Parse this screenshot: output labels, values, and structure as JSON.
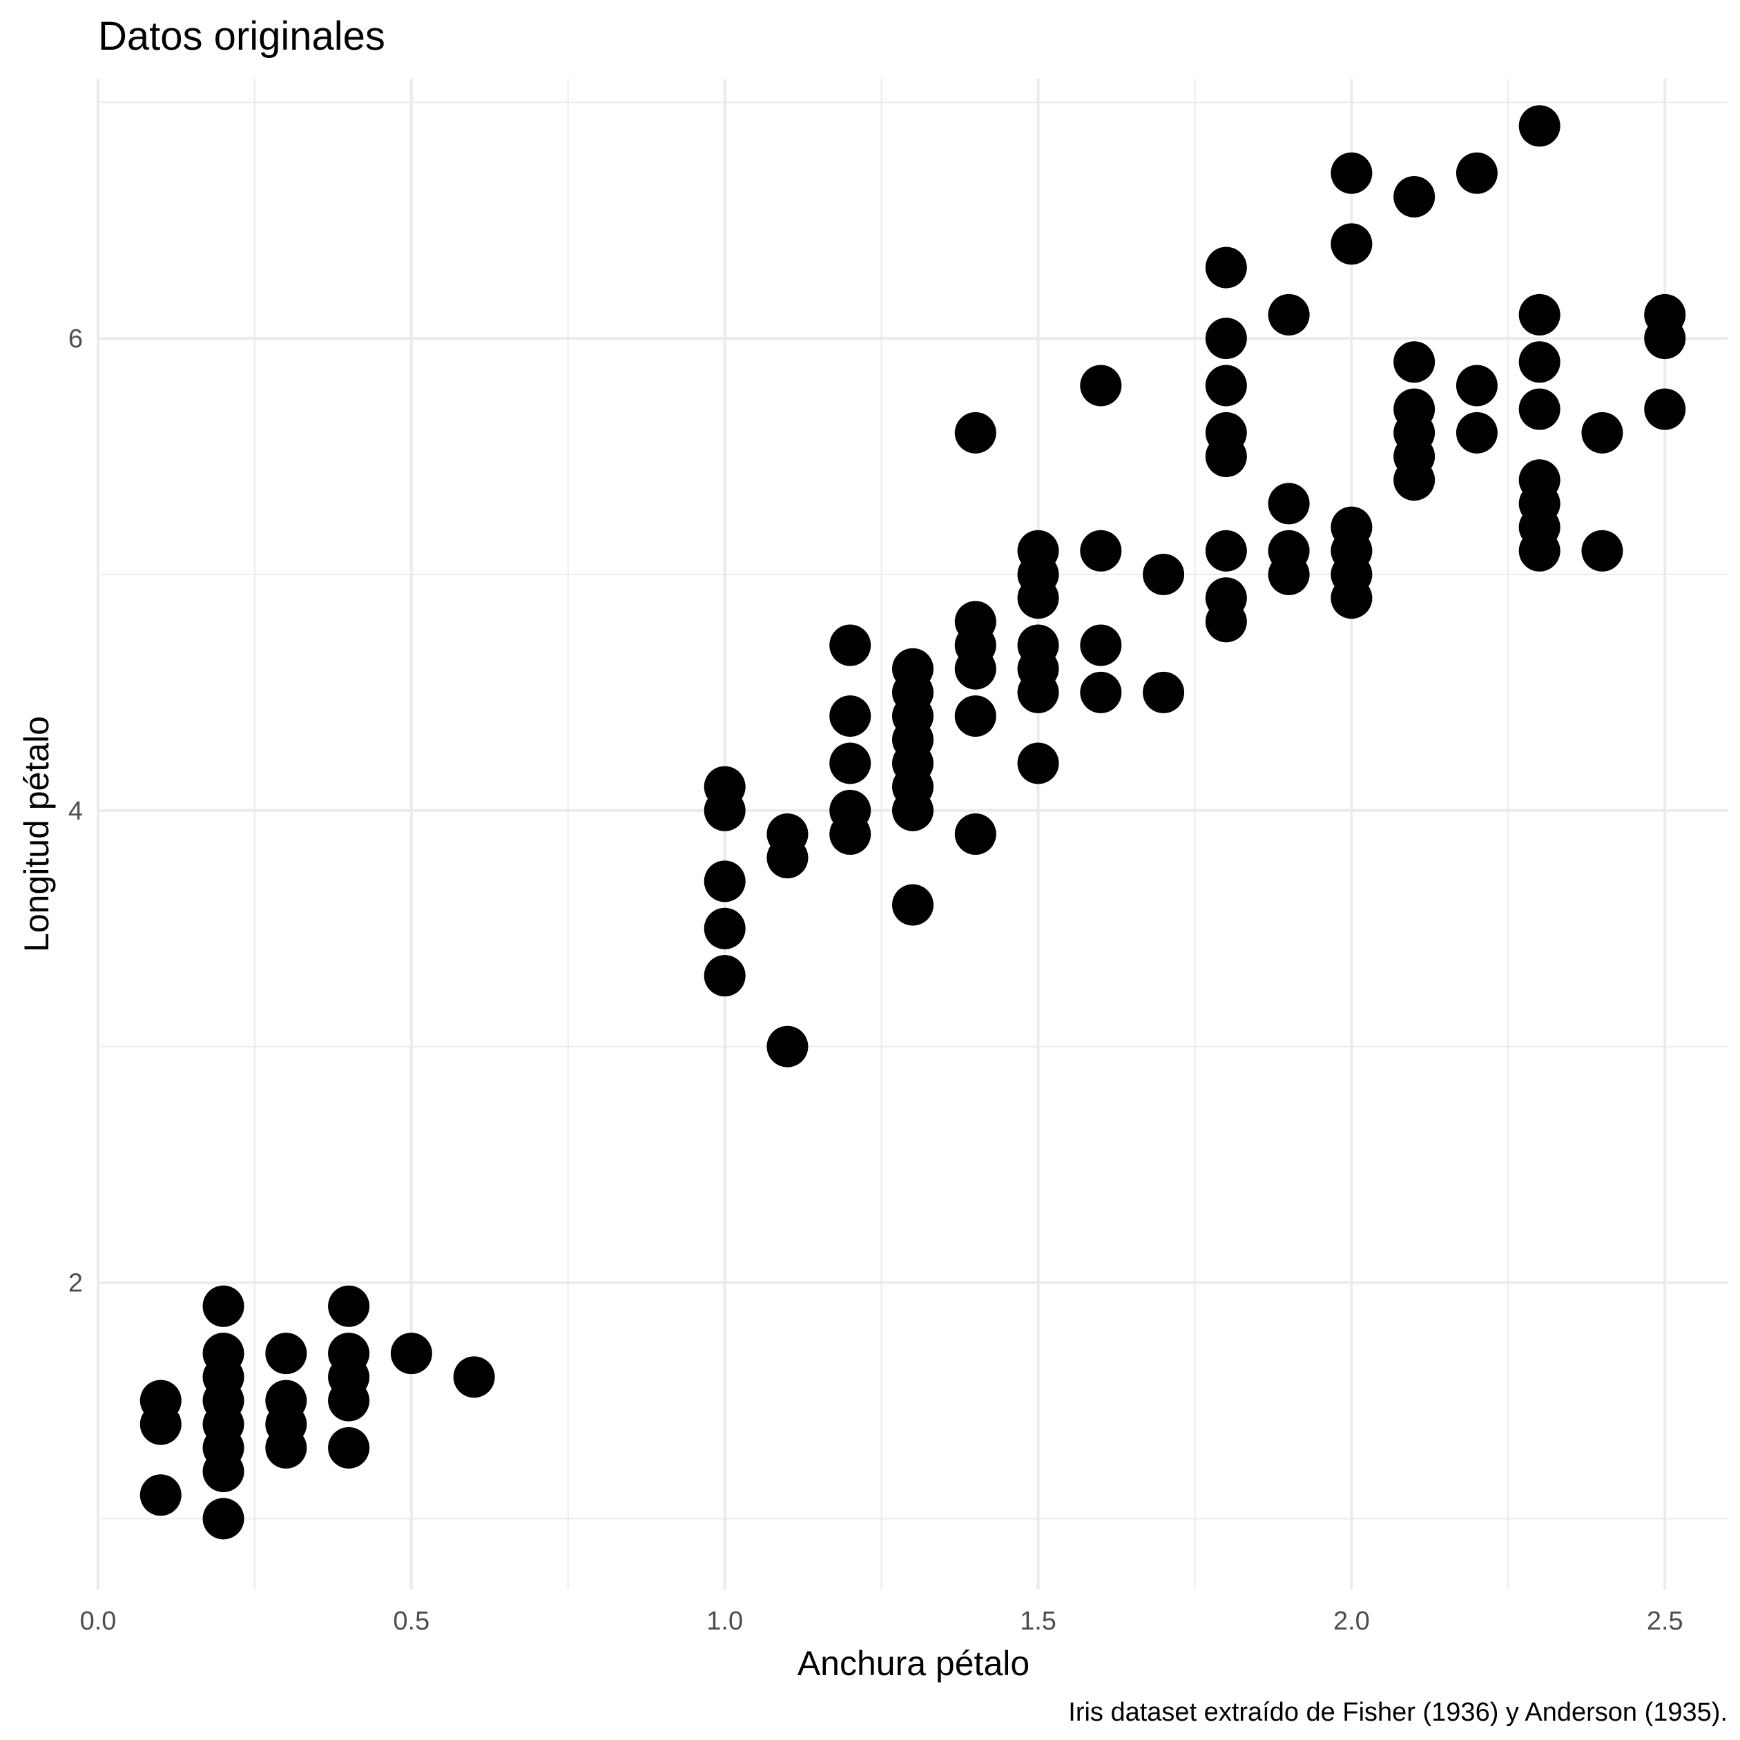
{
  "chart_data": {
    "type": "scatter",
    "title": "Datos originales",
    "xlabel": "Anchura pétalo",
    "ylabel": "Longitud pétalo",
    "caption": "Iris dataset extraído de Fisher (1936) y Anderson (1935).",
    "xlim": [
      0.0,
      2.6
    ],
    "ylim": [
      0.7,
      7.1
    ],
    "x_ticks": [
      0.0,
      0.5,
      1.0,
      1.5,
      2.0,
      2.5
    ],
    "x_tick_labels": [
      "0.0",
      "0.5",
      "1.0",
      "1.5",
      "2.0",
      "2.5"
    ],
    "y_ticks": [
      2,
      4,
      6
    ],
    "y_tick_labels": [
      "2",
      "4",
      "6"
    ],
    "grid": true,
    "point_color": "#000000",
    "points": [
      [
        0.1,
        1.4
      ],
      [
        0.1,
        1.5
      ],
      [
        0.1,
        1.1
      ],
      [
        0.2,
        1.0
      ],
      [
        0.2,
        1.2
      ],
      [
        0.2,
        1.3
      ],
      [
        0.2,
        1.4
      ],
      [
        0.2,
        1.5
      ],
      [
        0.2,
        1.6
      ],
      [
        0.2,
        1.7
      ],
      [
        0.2,
        1.9
      ],
      [
        0.3,
        1.3
      ],
      [
        0.3,
        1.4
      ],
      [
        0.3,
        1.5
      ],
      [
        0.3,
        1.7
      ],
      [
        0.4,
        1.3
      ],
      [
        0.4,
        1.5
      ],
      [
        0.4,
        1.6
      ],
      [
        0.4,
        1.7
      ],
      [
        0.4,
        1.9
      ],
      [
        0.5,
        1.7
      ],
      [
        0.6,
        1.6
      ],
      [
        1.0,
        3.3
      ],
      [
        1.0,
        3.5
      ],
      [
        1.0,
        3.7
      ],
      [
        1.0,
        4.0
      ],
      [
        1.0,
        4.1
      ],
      [
        1.1,
        3.0
      ],
      [
        1.1,
        3.8
      ],
      [
        1.1,
        3.9
      ],
      [
        1.2,
        3.9
      ],
      [
        1.2,
        4.0
      ],
      [
        1.2,
        4.2
      ],
      [
        1.2,
        4.4
      ],
      [
        1.2,
        4.7
      ],
      [
        1.3,
        3.6
      ],
      [
        1.3,
        4.0
      ],
      [
        1.3,
        4.1
      ],
      [
        1.3,
        4.2
      ],
      [
        1.3,
        4.3
      ],
      [
        1.3,
        4.4
      ],
      [
        1.3,
        4.5
      ],
      [
        1.3,
        4.6
      ],
      [
        1.4,
        3.9
      ],
      [
        1.4,
        4.4
      ],
      [
        1.4,
        4.6
      ],
      [
        1.4,
        4.7
      ],
      [
        1.4,
        4.8
      ],
      [
        1.4,
        5.6
      ],
      [
        1.5,
        4.2
      ],
      [
        1.5,
        4.5
      ],
      [
        1.5,
        4.6
      ],
      [
        1.5,
        4.7
      ],
      [
        1.5,
        4.9
      ],
      [
        1.5,
        5.0
      ],
      [
        1.5,
        5.1
      ],
      [
        1.6,
        4.5
      ],
      [
        1.6,
        4.7
      ],
      [
        1.6,
        5.1
      ],
      [
        1.6,
        5.8
      ],
      [
        1.7,
        4.5
      ],
      [
        1.7,
        5.0
      ],
      [
        1.8,
        4.8
      ],
      [
        1.8,
        4.9
      ],
      [
        1.8,
        5.1
      ],
      [
        1.8,
        5.5
      ],
      [
        1.8,
        5.6
      ],
      [
        1.8,
        5.8
      ],
      [
        1.8,
        6.0
      ],
      [
        1.8,
        6.3
      ],
      [
        1.9,
        5.0
      ],
      [
        1.9,
        5.1
      ],
      [
        1.9,
        5.3
      ],
      [
        1.9,
        6.1
      ],
      [
        2.0,
        4.9
      ],
      [
        2.0,
        5.0
      ],
      [
        2.0,
        5.1
      ],
      [
        2.0,
        5.2
      ],
      [
        2.0,
        6.4
      ],
      [
        2.0,
        6.7
      ],
      [
        2.1,
        5.4
      ],
      [
        2.1,
        5.5
      ],
      [
        2.1,
        5.6
      ],
      [
        2.1,
        5.7
      ],
      [
        2.1,
        5.9
      ],
      [
        2.1,
        6.6
      ],
      [
        2.2,
        5.6
      ],
      [
        2.2,
        5.8
      ],
      [
        2.2,
        6.7
      ],
      [
        2.3,
        5.1
      ],
      [
        2.3,
        5.2
      ],
      [
        2.3,
        5.3
      ],
      [
        2.3,
        5.4
      ],
      [
        2.3,
        5.7
      ],
      [
        2.3,
        5.9
      ],
      [
        2.3,
        6.1
      ],
      [
        2.3,
        6.9
      ],
      [
        2.4,
        5.1
      ],
      [
        2.4,
        5.6
      ],
      [
        2.5,
        5.7
      ],
      [
        2.5,
        6.0
      ],
      [
        2.5,
        6.1
      ]
    ]
  }
}
